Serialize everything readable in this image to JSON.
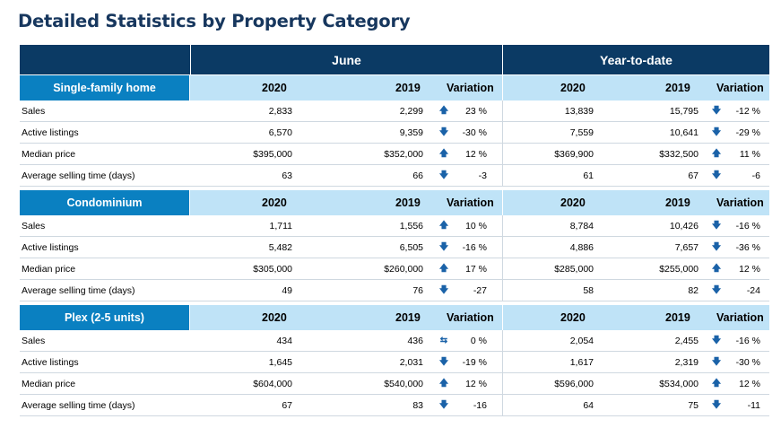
{
  "title": "Detailed Statistics by Property Category",
  "groups": {
    "june": "June",
    "ytd": "Year-to-date"
  },
  "headers": {
    "y2020": "2020",
    "y2019": "2019",
    "variation": "Variation"
  },
  "colors": {
    "title": "#17375e",
    "header_bg": "#0b3a64",
    "category_bg": "#0a80c1",
    "subheader_bg": "#bfe3f7",
    "arrow": "#1a62a8"
  },
  "arrow_icons": {
    "up": "🡅",
    "down": "🡇",
    "flat": "⇆"
  },
  "categories": [
    {
      "name": "Single-family home",
      "rows": [
        {
          "label": "Sales",
          "june": {
            "y2020": "2,833",
            "y2019": "2,299",
            "dir": "up",
            "var": "23 %"
          },
          "ytd": {
            "y2020": "13,839",
            "y2019": "15,795",
            "dir": "down",
            "var": "-12 %"
          }
        },
        {
          "label": "Active listings",
          "june": {
            "y2020": "6,570",
            "y2019": "9,359",
            "dir": "down",
            "var": "-30 %"
          },
          "ytd": {
            "y2020": "7,559",
            "y2019": "10,641",
            "dir": "down",
            "var": "-29 %"
          }
        },
        {
          "label": "Median price",
          "june": {
            "y2020": "$395,000",
            "y2019": "$352,000",
            "dir": "up",
            "var": "12 %"
          },
          "ytd": {
            "y2020": "$369,900",
            "y2019": "$332,500",
            "dir": "up",
            "var": "11 %"
          }
        },
        {
          "label": "Average selling time (days)",
          "june": {
            "y2020": "63",
            "y2019": "66",
            "dir": "down",
            "var": "-3"
          },
          "ytd": {
            "y2020": "61",
            "y2019": "67",
            "dir": "down",
            "var": "-6"
          }
        }
      ]
    },
    {
      "name": "Condominium",
      "rows": [
        {
          "label": "Sales",
          "june": {
            "y2020": "1,711",
            "y2019": "1,556",
            "dir": "up",
            "var": "10 %"
          },
          "ytd": {
            "y2020": "8,784",
            "y2019": "10,426",
            "dir": "down",
            "var": "-16 %"
          }
        },
        {
          "label": "Active listings",
          "june": {
            "y2020": "5,482",
            "y2019": "6,505",
            "dir": "down",
            "var": "-16 %"
          },
          "ytd": {
            "y2020": "4,886",
            "y2019": "7,657",
            "dir": "down",
            "var": "-36 %"
          }
        },
        {
          "label": "Median price",
          "june": {
            "y2020": "$305,000",
            "y2019": "$260,000",
            "dir": "up",
            "var": "17 %"
          },
          "ytd": {
            "y2020": "$285,000",
            "y2019": "$255,000",
            "dir": "up",
            "var": "12 %"
          }
        },
        {
          "label": "Average selling time (days)",
          "june": {
            "y2020": "49",
            "y2019": "76",
            "dir": "down",
            "var": "-27"
          },
          "ytd": {
            "y2020": "58",
            "y2019": "82",
            "dir": "down",
            "var": "-24"
          }
        }
      ]
    },
    {
      "name": "Plex (2-5 units)",
      "rows": [
        {
          "label": "Sales",
          "june": {
            "y2020": "434",
            "y2019": "436",
            "dir": "flat",
            "var": "0 %"
          },
          "ytd": {
            "y2020": "2,054",
            "y2019": "2,455",
            "dir": "down",
            "var": "-16 %"
          }
        },
        {
          "label": "Active listings",
          "june": {
            "y2020": "1,645",
            "y2019": "2,031",
            "dir": "down",
            "var": "-19 %"
          },
          "ytd": {
            "y2020": "1,617",
            "y2019": "2,319",
            "dir": "down",
            "var": "-30 %"
          }
        },
        {
          "label": "Median price",
          "june": {
            "y2020": "$604,000",
            "y2019": "$540,000",
            "dir": "up",
            "var": "12 %"
          },
          "ytd": {
            "y2020": "$596,000",
            "y2019": "$534,000",
            "dir": "up",
            "var": "12 %"
          }
        },
        {
          "label": "Average selling time (days)",
          "june": {
            "y2020": "67",
            "y2019": "83",
            "dir": "down",
            "var": "-16"
          },
          "ytd": {
            "y2020": "64",
            "y2019": "75",
            "dir": "down",
            "var": "-11"
          }
        }
      ]
    }
  ]
}
